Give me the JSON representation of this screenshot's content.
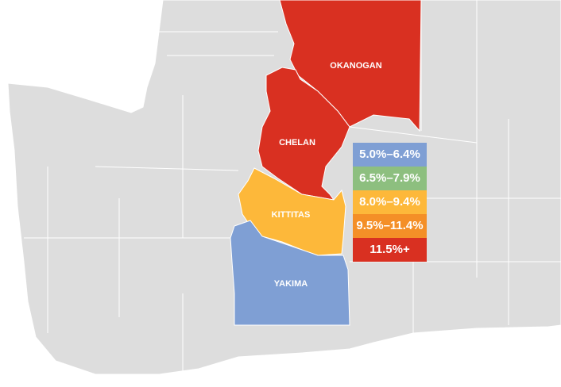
{
  "colors": {
    "background_state": "#dddddd",
    "county_border": "#ffffff"
  },
  "legend": [
    {
      "label": "5.0%–6.4%",
      "color": "#7f9fd4"
    },
    {
      "label": "6.5%–7.9%",
      "color": "#8dbf7f"
    },
    {
      "label": "8.0%–9.4%",
      "color": "#fdb83a"
    },
    {
      "label": "9.5%–11.4%",
      "color": "#f48f27"
    },
    {
      "label": "11.5%+",
      "color": "#d93021"
    }
  ],
  "counties": [
    {
      "name": "OKANOGAN",
      "range": "11.5%+",
      "color": "#d93021"
    },
    {
      "name": "CHELAN",
      "range": "11.5%+",
      "color": "#d93021"
    },
    {
      "name": "KITTITAS",
      "range": "8.0%–9.4%",
      "color": "#fdb83a"
    },
    {
      "name": "YAKIMA",
      "range": "5.0%–6.4%",
      "color": "#7f9fd4"
    }
  ]
}
